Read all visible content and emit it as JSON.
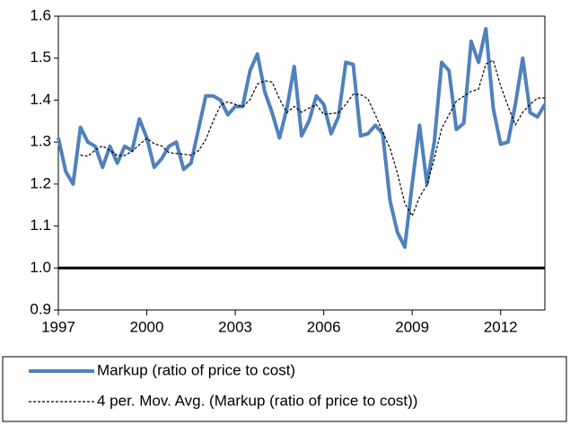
{
  "chart_data": {
    "type": "line",
    "categories": [
      "1997",
      null,
      null,
      null,
      null,
      null,
      null,
      null,
      null,
      null,
      null,
      null,
      "2000",
      null,
      null,
      null,
      null,
      null,
      null,
      null,
      null,
      null,
      null,
      null,
      "2003",
      null,
      null,
      null,
      null,
      null,
      null,
      null,
      null,
      null,
      null,
      null,
      "2006",
      null,
      null,
      null,
      null,
      null,
      null,
      null,
      null,
      null,
      null,
      null,
      "2009",
      null,
      null,
      null,
      null,
      null,
      null,
      null,
      null,
      null,
      null,
      null,
      "2012",
      null,
      null,
      null,
      null,
      null,
      null
    ],
    "series": [
      {
        "name": "Markup (ratio of price to cost)",
        "color": "#4f81bd",
        "style": "solid",
        "values": [
          1.31,
          1.23,
          1.2,
          1.335,
          1.3,
          1.29,
          1.24,
          1.29,
          1.25,
          1.29,
          1.28,
          1.355,
          1.31,
          1.24,
          1.26,
          1.29,
          1.3,
          1.235,
          1.25,
          1.33,
          1.41,
          1.41,
          1.4,
          1.365,
          1.385,
          1.385,
          1.47,
          1.51,
          1.42,
          1.37,
          1.31,
          1.38,
          1.48,
          1.315,
          1.35,
          1.41,
          1.39,
          1.32,
          1.36,
          1.49,
          1.485,
          1.315,
          1.32,
          1.34,
          1.32,
          1.16,
          1.085,
          1.05,
          1.2,
          1.34,
          1.2,
          1.3,
          1.49,
          1.47,
          1.33,
          1.345,
          1.54,
          1.49,
          1.57,
          1.38,
          1.295,
          1.3,
          1.39,
          1.5,
          1.37,
          1.36,
          1.39
        ]
      },
      {
        "name": "4 per. Mov. Avg. (Markup (ratio of price to cost))",
        "color": "#000000",
        "style": "dashed",
        "values": [
          null,
          null,
          null,
          1.269,
          1.266,
          1.281,
          1.291,
          1.28,
          1.268,
          1.268,
          1.278,
          1.294,
          1.309,
          1.296,
          1.291,
          1.275,
          1.273,
          1.271,
          1.269,
          1.279,
          1.306,
          1.35,
          1.388,
          1.396,
          1.39,
          1.384,
          1.401,
          1.438,
          1.446,
          1.443,
          1.403,
          1.37,
          1.385,
          1.371,
          1.381,
          1.389,
          1.366,
          1.368,
          1.37,
          1.39,
          1.414,
          1.413,
          1.403,
          1.365,
          1.324,
          1.285,
          1.226,
          1.154,
          1.124,
          1.169,
          1.198,
          1.26,
          1.333,
          1.365,
          1.398,
          1.409,
          1.421,
          1.426,
          1.486,
          1.495,
          1.434,
          1.386,
          1.341,
          1.371,
          1.39,
          1.405,
          1.405
        ]
      }
    ],
    "reference_line": {
      "value": 1,
      "color": "#000000"
    },
    "ylim": [
      0.9,
      1.6
    ],
    "yticks": [
      0.9,
      {
        "value": 1,
        "label": "1.0"
      },
      1.1,
      1.2,
      1.3,
      1.4,
      1.5,
      1.6
    ],
    "grid": false,
    "legend": "bottom"
  }
}
